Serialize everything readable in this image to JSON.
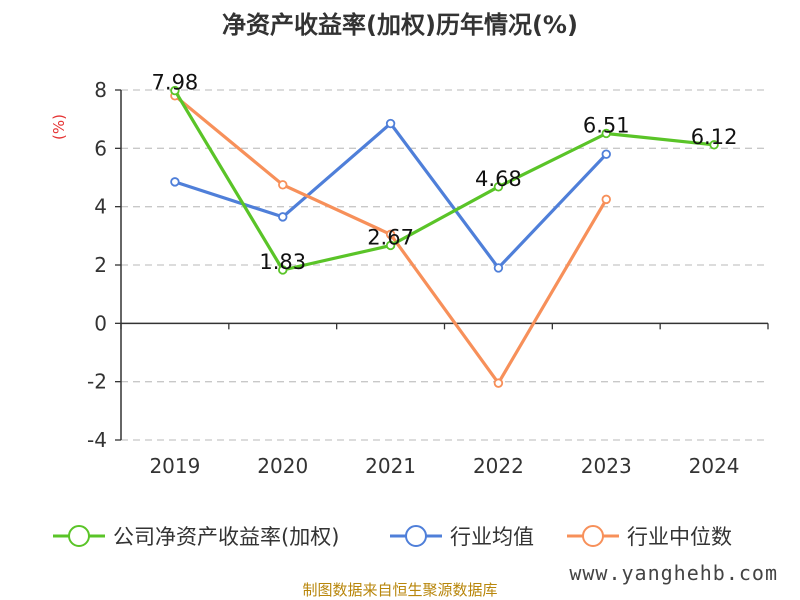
{
  "chart_data": {
    "type": "line",
    "title": "净资产收益率(加权)历年情况(%)",
    "y_unit": "(%)",
    "categories": [
      "2019",
      "2020",
      "2021",
      "2022",
      "2023",
      "2024"
    ],
    "ylim": [
      -4,
      8
    ],
    "yticks": [
      -4,
      -2,
      0,
      2,
      4,
      6,
      8
    ],
    "grid": true,
    "legend_position": "bottom",
    "series": [
      {
        "name": "公司净资产收益率(加权)",
        "color": "#5ac428",
        "values": [
          7.98,
          1.83,
          2.67,
          4.68,
          6.51,
          6.12
        ],
        "labels": [
          "7.98",
          "1.83",
          "2.67",
          "4.68",
          "6.51",
          "6.12"
        ]
      },
      {
        "name": "行业均值",
        "color": "#4f7fd9",
        "values": [
          4.85,
          3.65,
          6.85,
          1.9,
          5.8,
          null
        ]
      },
      {
        "name": "行业中位数",
        "color": "#f7905a",
        "values": [
          7.8,
          4.75,
          3.05,
          -2.05,
          4.25,
          null
        ]
      }
    ]
  },
  "footer": {
    "source": "制图数据来自恒生聚源数据库",
    "watermark": "www.yanghehb.com"
  }
}
